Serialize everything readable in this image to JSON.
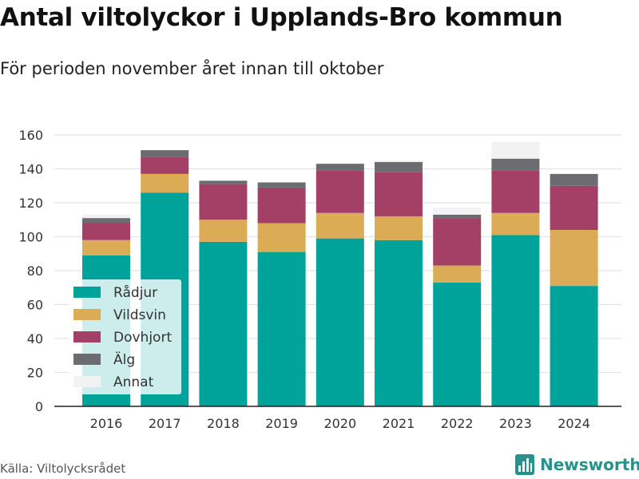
{
  "title": "Antal viltolyckor i Upplands-Bro kommun",
  "subtitle": "För perioden november året innan till oktober",
  "source": "Källa: Viltolycksrådet",
  "brand": "Newsworthy",
  "chart_data": {
    "type": "bar",
    "stacked": true,
    "categories": [
      "2016",
      "2017",
      "2018",
      "2019",
      "2020",
      "2021",
      "2022",
      "2023",
      "2024"
    ],
    "series": [
      {
        "name": "Rådjur",
        "color": "#00a39a",
        "values": [
          89,
          126,
          97,
          91,
          99,
          98,
          73,
          101,
          71
        ]
      },
      {
        "name": "Vildsvin",
        "color": "#dcab55",
        "values": [
          9,
          11,
          13,
          17,
          15,
          14,
          10,
          13,
          33
        ]
      },
      {
        "name": "Dovhjort",
        "color": "#a43f66",
        "values": [
          10,
          10,
          21,
          21,
          25,
          26,
          28,
          25,
          26
        ]
      },
      {
        "name": "Älg",
        "color": "#6b6b70",
        "values": [
          3,
          4,
          2,
          3,
          4,
          6,
          2,
          7,
          7
        ]
      },
      {
        "name": "Annat",
        "color": "#f2f2f3",
        "values": [
          2,
          0,
          0,
          0,
          0,
          1,
          4,
          10,
          0
        ]
      }
    ],
    "ylim": [
      0,
      160
    ],
    "yticks": [
      0,
      20,
      40,
      60,
      80,
      100,
      120,
      140,
      160
    ],
    "grid": true,
    "legend_position": "bottom-left"
  }
}
